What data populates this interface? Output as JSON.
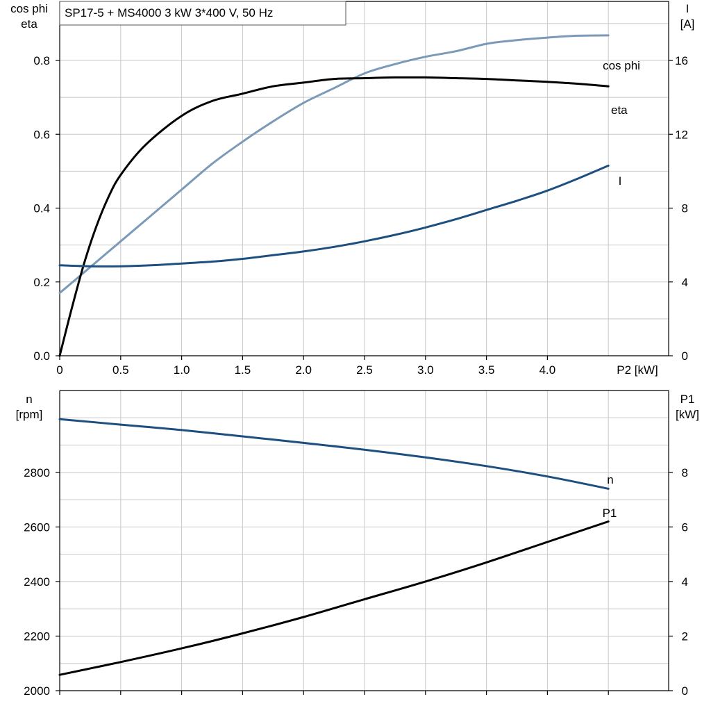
{
  "chart_data": [
    {
      "type": "line",
      "title": "SP17-5 + MS4000   3 kW   3*400 V, 50 Hz",
      "x_axis": {
        "label": "P2 [kW]",
        "range": [
          0,
          5.0
        ],
        "ticks": [
          0,
          0.5,
          1.0,
          1.5,
          2.0,
          2.5,
          3.0,
          3.5,
          4.0
        ],
        "tick_labels": [
          "0",
          "0.5",
          "1.0",
          "1.5",
          "2.0",
          "2.5",
          "3.0",
          "3.5",
          "4.0"
        ]
      },
      "y_left": {
        "label_lines": [
          "cos phi",
          "eta"
        ],
        "range": [
          0,
          0.96
        ],
        "ticks": [
          0,
          0.2,
          0.4,
          0.6,
          0.8
        ],
        "tick_labels": [
          "0.0",
          "0.2",
          "0.4",
          "0.6",
          "0.8"
        ]
      },
      "y_right": {
        "label_lines": [
          "I",
          "[A]"
        ],
        "range": [
          0,
          19.2
        ],
        "ticks": [
          0,
          4,
          8,
          12,
          16
        ],
        "tick_labels": [
          "0",
          "4",
          "8",
          "12",
          "16"
        ]
      },
      "grid": true,
      "series": [
        {
          "name": "cos phi",
          "axis": "left",
          "color": "#7a9ab8",
          "x": [
            0,
            0.25,
            0.5,
            0.75,
            1.0,
            1.25,
            1.5,
            1.75,
            2.0,
            2.25,
            2.5,
            2.75,
            3.0,
            3.25,
            3.5,
            3.75,
            4.0,
            4.25,
            4.5
          ],
          "y": [
            0.17,
            0.24,
            0.31,
            0.38,
            0.45,
            0.52,
            0.58,
            0.635,
            0.685,
            0.725,
            0.765,
            0.79,
            0.81,
            0.825,
            0.845,
            0.855,
            0.862,
            0.867,
            0.868
          ]
        },
        {
          "name": "eta",
          "axis": "left",
          "color": "#000000",
          "x": [
            0,
            0.1,
            0.2,
            0.3,
            0.4,
            0.5,
            0.7,
            1.0,
            1.25,
            1.5,
            1.75,
            2.0,
            2.25,
            2.5,
            2.75,
            3.0,
            3.25,
            3.5,
            3.75,
            4.0,
            4.25,
            4.5
          ],
          "y": [
            0.0,
            0.13,
            0.25,
            0.35,
            0.43,
            0.49,
            0.57,
            0.65,
            0.69,
            0.71,
            0.73,
            0.74,
            0.75,
            0.752,
            0.754,
            0.754,
            0.752,
            0.75,
            0.746,
            0.742,
            0.737,
            0.73
          ]
        },
        {
          "name": "I",
          "axis": "right",
          "color": "#1d4f80",
          "x": [
            0,
            0.25,
            0.5,
            0.75,
            1.0,
            1.25,
            1.5,
            1.75,
            2.0,
            2.25,
            2.5,
            2.75,
            3.0,
            3.25,
            3.5,
            3.75,
            4.0,
            4.25,
            4.5
          ],
          "y": [
            4.9,
            4.85,
            4.85,
            4.9,
            5.0,
            5.1,
            5.25,
            5.45,
            5.65,
            5.9,
            6.2,
            6.55,
            6.95,
            7.4,
            7.9,
            8.4,
            8.95,
            9.6,
            10.3
          ]
        }
      ]
    },
    {
      "type": "line",
      "x_axis": {
        "range": [
          0,
          5.0
        ],
        "ticks": [
          0,
          0.5,
          1.0,
          1.5,
          2.0,
          2.5,
          3.0,
          3.5,
          4.0,
          4.5
        ]
      },
      "y_left": {
        "label_lines": [
          "n",
          "[rpm]"
        ],
        "range": [
          2000,
          3100
        ],
        "ticks": [
          2000,
          2200,
          2400,
          2600,
          2800
        ],
        "tick_labels": [
          "2000",
          "2200",
          "2400",
          "2600",
          "2800"
        ]
      },
      "y_right": {
        "label_lines": [
          "P1",
          "[kW]"
        ],
        "range": [
          0,
          11
        ],
        "ticks": [
          0,
          2,
          4,
          6,
          8
        ],
        "tick_labels": [
          "0",
          "2",
          "4",
          "6",
          "8"
        ]
      },
      "grid": true,
      "series": [
        {
          "name": "n",
          "axis": "left",
          "color": "#1d4f80",
          "x": [
            0,
            0.5,
            1.0,
            1.5,
            2.0,
            2.5,
            3.0,
            3.5,
            4.0,
            4.5
          ],
          "y": [
            2995,
            2975,
            2955,
            2932,
            2908,
            2883,
            2855,
            2823,
            2785,
            2740
          ]
        },
        {
          "name": "P1",
          "axis": "right",
          "color": "#000000",
          "x": [
            0,
            0.5,
            1.0,
            1.5,
            2.0,
            2.5,
            3.0,
            3.5,
            4.0,
            4.5
          ],
          "y": [
            0.58,
            1.05,
            1.55,
            2.1,
            2.7,
            3.35,
            4.0,
            4.7,
            5.45,
            6.2
          ]
        }
      ]
    }
  ]
}
